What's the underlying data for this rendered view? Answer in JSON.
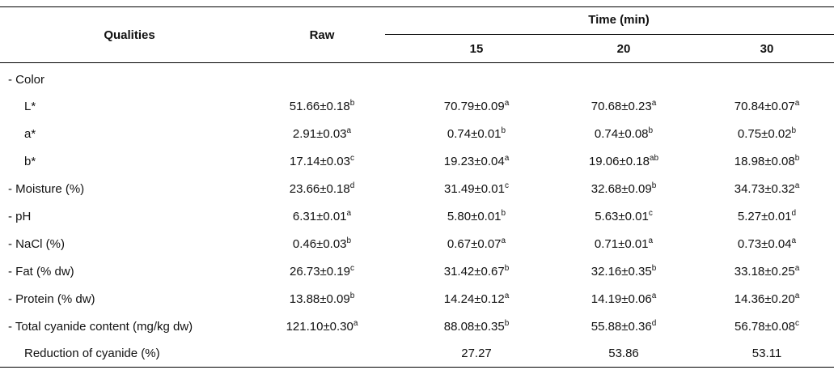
{
  "header": {
    "qualities": "Qualities",
    "raw": "Raw",
    "time": "Time (min)",
    "times": [
      "15",
      "20",
      "30"
    ]
  },
  "rows": [
    {
      "label": "- Color",
      "indent": false,
      "cells": []
    },
    {
      "label": "L*",
      "indent": true,
      "cells": [
        {
          "v": "51.66±0.18",
          "s": "b"
        },
        {
          "v": "70.79±0.09",
          "s": "a"
        },
        {
          "v": "70.68±0.23",
          "s": "a"
        },
        {
          "v": "70.84±0.07",
          "s": "a"
        }
      ]
    },
    {
      "label": "a*",
      "indent": true,
      "cells": [
        {
          "v": "2.91±0.03",
          "s": "a"
        },
        {
          "v": "0.74±0.01",
          "s": "b"
        },
        {
          "v": "0.74±0.08",
          "s": "b"
        },
        {
          "v": "0.75±0.02",
          "s": "b"
        }
      ]
    },
    {
      "label": "b*",
      "indent": true,
      "cells": [
        {
          "v": "17.14±0.03",
          "s": "c"
        },
        {
          "v": "19.23±0.04",
          "s": "a"
        },
        {
          "v": "19.06±0.18",
          "s": "ab"
        },
        {
          "v": "18.98±0.08",
          "s": "b"
        }
      ]
    },
    {
      "label": "- Moisture (%)",
      "indent": false,
      "cells": [
        {
          "v": "23.66±0.18",
          "s": "d"
        },
        {
          "v": "31.49±0.01",
          "s": "c"
        },
        {
          "v": "32.68±0.09",
          "s": "b"
        },
        {
          "v": "34.73±0.32",
          "s": "a"
        }
      ]
    },
    {
      "label": "- pH",
      "indent": false,
      "cells": [
        {
          "v": "6.31±0.01",
          "s": "a"
        },
        {
          "v": "5.80±0.01",
          "s": "b"
        },
        {
          "v": "5.63±0.01",
          "s": "c"
        },
        {
          "v": "5.27±0.01",
          "s": "d"
        }
      ]
    },
    {
      "label": "- NaCl (%)",
      "indent": false,
      "cells": [
        {
          "v": "0.46±0.03",
          "s": "b"
        },
        {
          "v": "0.67±0.07",
          "s": "a"
        },
        {
          "v": "0.71±0.01",
          "s": "a"
        },
        {
          "v": "0.73±0.04",
          "s": "a"
        }
      ]
    },
    {
      "label": "- Fat (% dw)",
      "indent": false,
      "cells": [
        {
          "v": "26.73±0.19",
          "s": "c"
        },
        {
          "v": "31.42±0.67",
          "s": "b"
        },
        {
          "v": "32.16±0.35",
          "s": "b"
        },
        {
          "v": "33.18±0.25",
          "s": "a"
        }
      ]
    },
    {
      "label": "- Protein (% dw)",
      "indent": false,
      "cells": [
        {
          "v": "13.88±0.09",
          "s": "b"
        },
        {
          "v": "14.24±0.12",
          "s": "a"
        },
        {
          "v": "14.19±0.06",
          "s": "a"
        },
        {
          "v": "14.36±0.20",
          "s": "a"
        }
      ]
    },
    {
      "label": "- Total cyanide content (mg/kg dw)",
      "indent": false,
      "cells": [
        {
          "v": "121.10±0.30",
          "s": "a"
        },
        {
          "v": "88.08±0.35",
          "s": "b"
        },
        {
          "v": "55.88±0.36",
          "s": "d"
        },
        {
          "v": "56.78±0.08",
          "s": "c"
        }
      ]
    },
    {
      "label": "Reduction of cyanide (%)",
      "indent": true,
      "cells": [
        {
          "v": "",
          "s": ""
        },
        {
          "v": "27.27",
          "s": ""
        },
        {
          "v": "53.86",
          "s": ""
        },
        {
          "v": "53.11",
          "s": ""
        }
      ]
    }
  ]
}
